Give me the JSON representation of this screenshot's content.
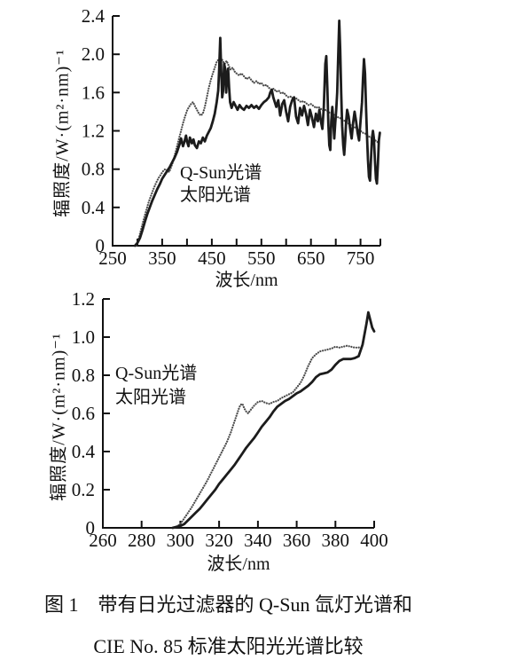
{
  "figure": {
    "caption": {
      "line1": "图 1　带有日光过滤器的 Q-Sun 氙灯光谱和",
      "line2": "CIE No. 85 标准太阳光光谱比较"
    }
  },
  "colors": {
    "background": "#ffffff",
    "axis": "#111111",
    "qsun_curve": "#1c1c1c",
    "solar_curve": "#4d4d4d"
  },
  "chart_data": [
    {
      "type": "line",
      "title": "",
      "xlabel": "波长/nm",
      "ylabel": "辐照度/W·(m²·nm)⁻¹",
      "xlim": [
        250,
        790
      ],
      "ylim": [
        0,
        2.4
      ],
      "grid": false,
      "legend_position": "inside-left",
      "xticks": [
        300,
        350,
        400,
        450,
        500,
        550,
        600,
        650,
        700,
        750,
        790
      ],
      "xtick_labels": [
        "250",
        "350",
        "450",
        "550",
        "650",
        "750"
      ],
      "xtick_label_values": [
        250,
        350,
        450,
        550,
        650,
        750
      ],
      "yticks": [
        "0",
        "0.4",
        "0.8",
        "1.2",
        "1.6",
        "2.0",
        "2.4"
      ],
      "legend": [
        "Q-Sun光谱",
        "太阳光谱"
      ],
      "series": [
        {
          "id": "qsun",
          "name": "Q-Sun光谱",
          "style": "solid",
          "x": [
            295,
            300,
            305,
            310,
            315,
            320,
            325,
            330,
            335,
            340,
            345,
            350,
            355,
            360,
            365,
            370,
            375,
            380,
            385,
            388,
            392,
            395,
            398,
            400,
            403,
            406,
            410,
            413,
            416,
            420,
            424,
            428,
            432,
            436,
            440,
            444,
            448,
            452,
            456,
            460,
            463,
            465,
            467,
            469,
            471,
            473,
            475,
            477,
            479,
            481,
            483,
            485,
            487,
            490,
            494,
            498,
            502,
            506,
            510,
            515,
            520,
            525,
            530,
            535,
            540,
            545,
            550,
            555,
            560,
            565,
            568,
            571,
            574,
            577,
            580,
            584,
            588,
            592,
            596,
            600,
            604,
            608,
            612,
            616,
            620,
            624,
            628,
            632,
            636,
            640,
            644,
            648,
            652,
            656,
            660,
            664,
            667,
            670,
            673,
            676,
            679,
            681,
            683,
            685,
            687,
            689,
            691,
            693,
            695,
            697,
            699,
            701,
            703,
            705,
            707,
            709,
            711,
            713,
            715,
            717,
            719,
            721,
            723,
            726,
            729,
            732,
            735,
            738,
            741,
            744,
            747,
            750,
            753,
            755,
            757,
            759,
            761,
            763,
            765,
            767,
            769,
            771,
            773,
            775,
            777,
            779,
            781,
            783,
            785,
            787,
            789
          ],
          "y": [
            0,
            0.03,
            0.08,
            0.16,
            0.25,
            0.33,
            0.4,
            0.47,
            0.53,
            0.59,
            0.64,
            0.7,
            0.74,
            0.78,
            0.82,
            0.87,
            0.92,
            0.98,
            1.06,
            1.12,
            1.04,
            1.09,
            1.15,
            1.09,
            1.04,
            1.13,
            1.07,
            1.11,
            1.05,
            1.02,
            1.09,
            1.07,
            1.13,
            1.09,
            1.15,
            1.19,
            1.23,
            1.3,
            1.38,
            1.5,
            1.62,
            1.85,
            2.17,
            1.82,
            1.55,
            1.62,
            1.9,
            1.85,
            1.6,
            1.78,
            1.85,
            1.65,
            1.5,
            1.44,
            1.5,
            1.46,
            1.42,
            1.47,
            1.44,
            1.42,
            1.46,
            1.44,
            1.47,
            1.44,
            1.46,
            1.43,
            1.47,
            1.5,
            1.52,
            1.55,
            1.6,
            1.63,
            1.55,
            1.5,
            1.45,
            1.52,
            1.36,
            1.48,
            1.52,
            1.4,
            1.3,
            1.45,
            1.52,
            1.55,
            1.35,
            1.28,
            1.44,
            1.36,
            1.46,
            1.38,
            1.26,
            1.42,
            1.34,
            1.24,
            1.38,
            1.3,
            1.42,
            1.3,
            1.22,
            1.45,
            1.9,
            1.98,
            1.65,
            1.28,
            1.05,
            1.0,
            1.3,
            1.45,
            1.3,
            1.12,
            1.28,
            1.42,
            1.6,
            2.0,
            2.35,
            2.05,
            1.6,
            1.25,
            1.05,
            0.95,
            1.1,
            1.3,
            1.42,
            1.35,
            1.22,
            1.12,
            1.28,
            1.4,
            1.3,
            1.18,
            1.1,
            1.3,
            1.5,
            1.75,
            1.95,
            1.8,
            1.45,
            1.15,
            0.9,
            0.72,
            0.68,
            0.9,
            1.12,
            1.2,
            1.12,
            0.9,
            0.7,
            0.65,
            0.85,
            1.1,
            1.18
          ]
        },
        {
          "id": "solar",
          "name": "太阳光谱",
          "style": "dotted",
          "x": [
            298,
            303,
            308,
            313,
            318,
            323,
            328,
            333,
            338,
            343,
            348,
            352,
            356,
            360,
            364,
            368,
            372,
            376,
            380,
            384,
            388,
            392,
            396,
            400,
            404,
            408,
            412,
            416,
            420,
            424,
            428,
            432,
            436,
            440,
            444,
            448,
            452,
            456,
            460,
            464,
            468,
            472,
            476,
            480,
            484,
            488,
            492,
            496,
            500,
            505,
            510,
            515,
            520,
            525,
            530,
            535,
            540,
            545,
            550,
            555,
            560,
            565,
            570,
            575,
            580,
            585,
            590,
            595,
            600,
            605,
            610,
            615,
            620,
            625,
            630,
            635,
            640,
            645,
            650,
            655,
            660,
            665,
            670,
            675,
            680,
            685,
            690,
            695,
            700,
            705,
            710,
            715,
            720,
            725,
            730,
            735,
            740,
            745,
            750,
            755,
            760,
            765,
            770,
            775,
            780,
            785
          ],
          "y": [
            0,
            0.08,
            0.18,
            0.28,
            0.37,
            0.46,
            0.53,
            0.6,
            0.66,
            0.71,
            0.75,
            0.78,
            0.8,
            0.79,
            0.77,
            0.82,
            0.88,
            0.96,
            1.04,
            1.12,
            1.2,
            1.28,
            1.35,
            1.41,
            1.45,
            1.48,
            1.5,
            1.46,
            1.42,
            1.38,
            1.36,
            1.38,
            1.45,
            1.55,
            1.65,
            1.73,
            1.8,
            1.86,
            1.92,
            1.95,
            1.97,
            1.93,
            1.9,
            1.93,
            1.88,
            1.84,
            1.86,
            1.82,
            1.8,
            1.78,
            1.8,
            1.77,
            1.74,
            1.76,
            1.73,
            1.7,
            1.72,
            1.69,
            1.7,
            1.67,
            1.68,
            1.65,
            1.63,
            1.64,
            1.61,
            1.62,
            1.59,
            1.6,
            1.57,
            1.55,
            1.56,
            1.53,
            1.54,
            1.52,
            1.5,
            1.51,
            1.49,
            1.47,
            1.48,
            1.46,
            1.44,
            1.45,
            1.43,
            1.41,
            1.42,
            1.4,
            1.38,
            1.37,
            1.36,
            1.34,
            1.33,
            1.31,
            1.3,
            1.28,
            1.26,
            1.25,
            1.23,
            1.22,
            1.2,
            1.18,
            1.17,
            1.15,
            1.13,
            1.12,
            1.1,
            1.08
          ]
        }
      ]
    },
    {
      "type": "line",
      "title": "",
      "xlabel": "波长/nm",
      "ylabel": "辐照度/W·(m²·nm)⁻¹",
      "xlim": [
        260,
        400
      ],
      "ylim": [
        0,
        1.2
      ],
      "grid": false,
      "legend_position": "inside-left",
      "xticks": [
        280,
        300,
        320,
        340,
        360,
        380,
        400
      ],
      "xtick_labels": [
        "260",
        "280",
        "300",
        "320",
        "340",
        "360",
        "380",
        "400"
      ],
      "xtick_label_values": [
        260,
        280,
        300,
        320,
        340,
        360,
        380,
        400
      ],
      "yticks": [
        "0",
        "0.2",
        "0.4",
        "0.6",
        "0.8",
        "1.0",
        "1.2"
      ],
      "legend": [
        "Q-Sun光谱",
        "太阳光谱"
      ],
      "series": [
        {
          "id": "qsun",
          "name": "Q-Sun光谱",
          "style": "solid",
          "x": [
            296,
            300,
            302,
            304,
            306,
            308,
            310,
            312,
            314,
            316,
            318,
            320,
            322,
            324,
            326,
            328,
            330,
            332,
            334,
            336,
            338,
            340,
            342,
            344,
            346,
            348,
            350,
            352,
            354,
            356,
            358,
            360,
            362,
            364,
            366,
            368,
            370,
            372,
            374,
            376,
            378,
            380,
            382,
            384,
            386,
            388,
            390,
            392,
            394,
            396,
            397,
            398,
            399,
            400
          ],
          "y": [
            0,
            0.01,
            0.02,
            0.04,
            0.06,
            0.08,
            0.1,
            0.125,
            0.15,
            0.175,
            0.2,
            0.23,
            0.255,
            0.28,
            0.305,
            0.33,
            0.36,
            0.39,
            0.42,
            0.445,
            0.47,
            0.5,
            0.53,
            0.555,
            0.58,
            0.61,
            0.635,
            0.65,
            0.665,
            0.675,
            0.69,
            0.705,
            0.715,
            0.73,
            0.745,
            0.765,
            0.79,
            0.805,
            0.81,
            0.815,
            0.83,
            0.855,
            0.875,
            0.885,
            0.885,
            0.885,
            0.89,
            0.9,
            0.96,
            1.07,
            1.13,
            1.09,
            1.05,
            1.03
          ]
        },
        {
          "id": "solar",
          "name": "太阳光谱",
          "style": "dotted",
          "x": [
            297,
            300,
            302,
            304,
            306,
            308,
            310,
            312,
            314,
            316,
            318,
            320,
            322,
            324,
            326,
            328,
            330,
            331,
            332,
            333,
            334,
            335,
            336,
            338,
            340,
            342,
            344,
            346,
            348,
            350,
            352,
            354,
            356,
            358,
            360,
            362,
            364,
            366,
            368,
            370,
            372,
            374,
            376,
            378,
            380,
            382,
            384,
            386,
            388,
            390,
            392,
            393
          ],
          "y": [
            0,
            0.02,
            0.05,
            0.08,
            0.11,
            0.145,
            0.18,
            0.215,
            0.25,
            0.29,
            0.33,
            0.37,
            0.41,
            0.45,
            0.5,
            0.56,
            0.62,
            0.645,
            0.65,
            0.625,
            0.61,
            0.6,
            0.615,
            0.64,
            0.66,
            0.665,
            0.655,
            0.65,
            0.66,
            0.665,
            0.68,
            0.69,
            0.7,
            0.71,
            0.735,
            0.76,
            0.8,
            0.85,
            0.89,
            0.91,
            0.925,
            0.93,
            0.935,
            0.94,
            0.95,
            0.945,
            0.95,
            0.955,
            0.95,
            0.945,
            0.945,
            0.95
          ]
        }
      ]
    }
  ]
}
